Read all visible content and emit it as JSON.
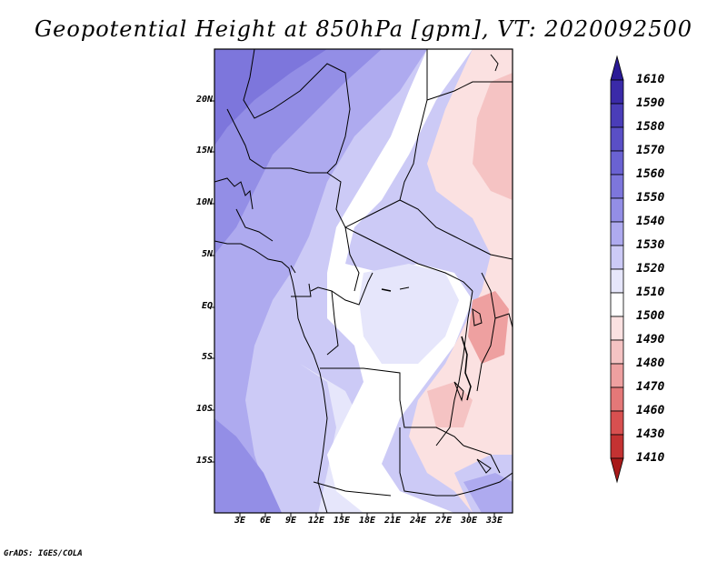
{
  "title": "Geopotential Height at 850hPa [gpm], VT: 2020092500",
  "footer": "GrADS: IGES/COLA",
  "map": {
    "region": "Central Africa",
    "variable": "Geopotential Height at 850hPa",
    "units": "gpm",
    "valid_time": "2020092500",
    "lat_labels": [
      "20N",
      "15N",
      "10N",
      "5N",
      "EQ",
      "5S",
      "10S",
      "15S"
    ],
    "lon_labels": [
      "3E",
      "6E",
      "9E",
      "12E",
      "15E",
      "18E",
      "21E",
      "24E",
      "27E",
      "30E",
      "33E"
    ]
  },
  "colorbar": {
    "labels": [
      "1610",
      "1590",
      "1580",
      "1570",
      "1560",
      "1550",
      "1540",
      "1530",
      "1520",
      "1510",
      "1500",
      "1490",
      "1480",
      "1470",
      "1460",
      "1430",
      "1410"
    ],
    "colors": [
      "#2a1a96",
      "#3a2aa8",
      "#4a3db8",
      "#5a4fc6",
      "#6a62d2",
      "#7d76dc",
      "#938ee6",
      "#aeaaef",
      "#cccaf6",
      "#e6e6fb",
      "#ffffff",
      "#fbe1e1",
      "#f5c3c3",
      "#eea0a0",
      "#e47878",
      "#d85050",
      "#c43232",
      "#a81a1a"
    ]
  }
}
